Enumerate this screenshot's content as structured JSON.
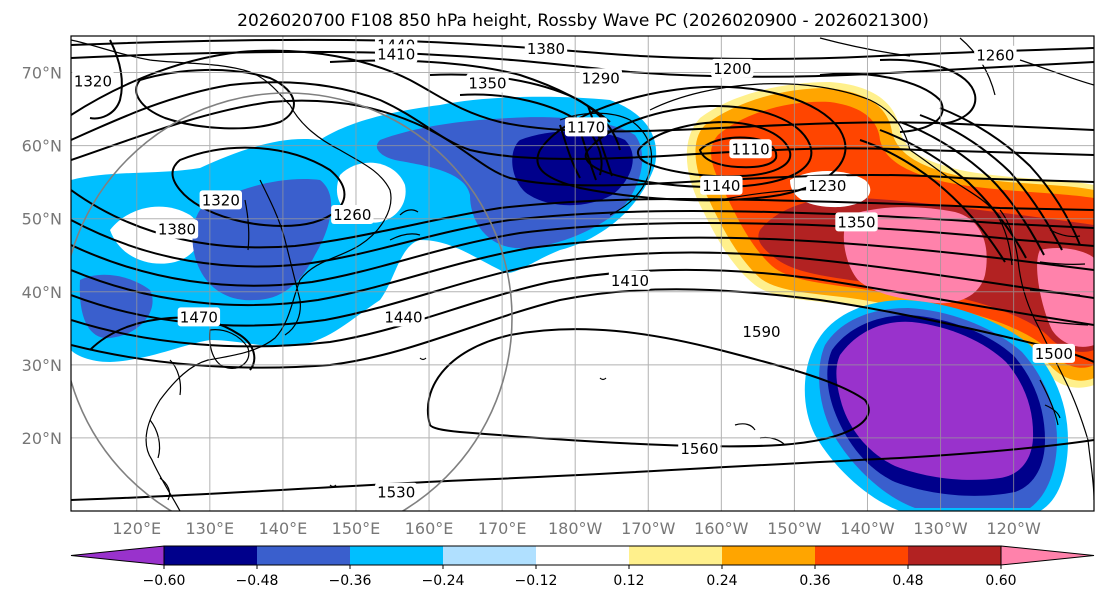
{
  "title": "2026020700 F108 850 hPa height, Rossby Wave PC (2026020900 - 2026021300)",
  "map": {
    "projection": "lat-lon",
    "lon_range": [
      111,
      251
    ],
    "lat_range": [
      10,
      75
    ],
    "lat_ticks": [
      {
        "lat": 70,
        "label": "70°N"
      },
      {
        "lat": 60,
        "label": "60°N"
      },
      {
        "lat": 50,
        "label": "50°N"
      },
      {
        "lat": 40,
        "label": "40°N"
      },
      {
        "lat": 30,
        "label": "30°N"
      },
      {
        "lat": 20,
        "label": "20°N"
      }
    ],
    "lon_ticks": [
      {
        "lon": 120,
        "label": "120°E"
      },
      {
        "lon": 130,
        "label": "130°E"
      },
      {
        "lon": 140,
        "label": "140°E"
      },
      {
        "lon": 150,
        "label": "150°E"
      },
      {
        "lon": 160,
        "label": "160°E"
      },
      {
        "lon": 170,
        "label": "170°E"
      },
      {
        "lon": 180,
        "label": "180°W"
      },
      {
        "lon": 190,
        "label": "170°W"
      },
      {
        "lon": 200,
        "label": "160°W"
      },
      {
        "lon": 210,
        "label": "150°W"
      },
      {
        "lon": 220,
        "label": "140°W"
      },
      {
        "lon": 230,
        "label": "130°W"
      },
      {
        "lon": 240,
        "label": "120°W"
      }
    ],
    "gridlines": true
  },
  "colorbar": {
    "colors": [
      "#9932cc",
      "#00008b",
      "#3a5fcd",
      "#00bfff",
      "#b0e0ff",
      "#ffffff",
      "#fff08c",
      "#ffa500",
      "#ff4500",
      "#b22222",
      "#ff82ab"
    ],
    "labels": [
      "−0.60",
      "−0.48",
      "−0.36",
      "−0.24",
      "−0.12",
      "0.12",
      "0.24",
      "0.36",
      "0.48",
      "0.60"
    ],
    "extend": "both"
  },
  "contour_labels": [
    {
      "text": "1440",
      "lon": 155.5,
      "lat": 73.7
    },
    {
      "text": "1410",
      "lon": 155.5,
      "lat": 72.5
    },
    {
      "text": "1380",
      "lon": 176,
      "lat": 73.2
    },
    {
      "text": "1350",
      "lon": 168,
      "lat": 68.5
    },
    {
      "text": "1290",
      "lon": 183.5,
      "lat": 69.2
    },
    {
      "text": "1200",
      "lon": 201.5,
      "lat": 70.5
    },
    {
      "text": "1260",
      "lon": 237.5,
      "lat": 72.3
    },
    {
      "text": "1320",
      "lon": 114,
      "lat": 68.8
    },
    {
      "text": "1170",
      "lon": 181.5,
      "lat": 62.5
    },
    {
      "text": "1110",
      "lon": 204,
      "lat": 59.5
    },
    {
      "text": "1140",
      "lon": 200,
      "lat": 54.5
    },
    {
      "text": "1230",
      "lon": 214.5,
      "lat": 54.5
    },
    {
      "text": "1320",
      "lon": 131.5,
      "lat": 52.5
    },
    {
      "text": "1260",
      "lon": 149.5,
      "lat": 50.5
    },
    {
      "text": "1380",
      "lon": 125.5,
      "lat": 48.5
    },
    {
      "text": "1350",
      "lon": 218.5,
      "lat": 49.5
    },
    {
      "text": "1410",
      "lon": 187.5,
      "lat": 41.5
    },
    {
      "text": "1440",
      "lon": 156.5,
      "lat": 36.5
    },
    {
      "text": "1470",
      "lon": 128.5,
      "lat": 36.5
    },
    {
      "text": "1590",
      "lon": 205.5,
      "lat": 34.5
    },
    {
      "text": "1500",
      "lon": 245.5,
      "lat": 31.5
    },
    {
      "text": "1560",
      "lon": 197,
      "lat": 18.5
    },
    {
      "text": "1530",
      "lon": 155.5,
      "lat": 12.5
    }
  ]
}
